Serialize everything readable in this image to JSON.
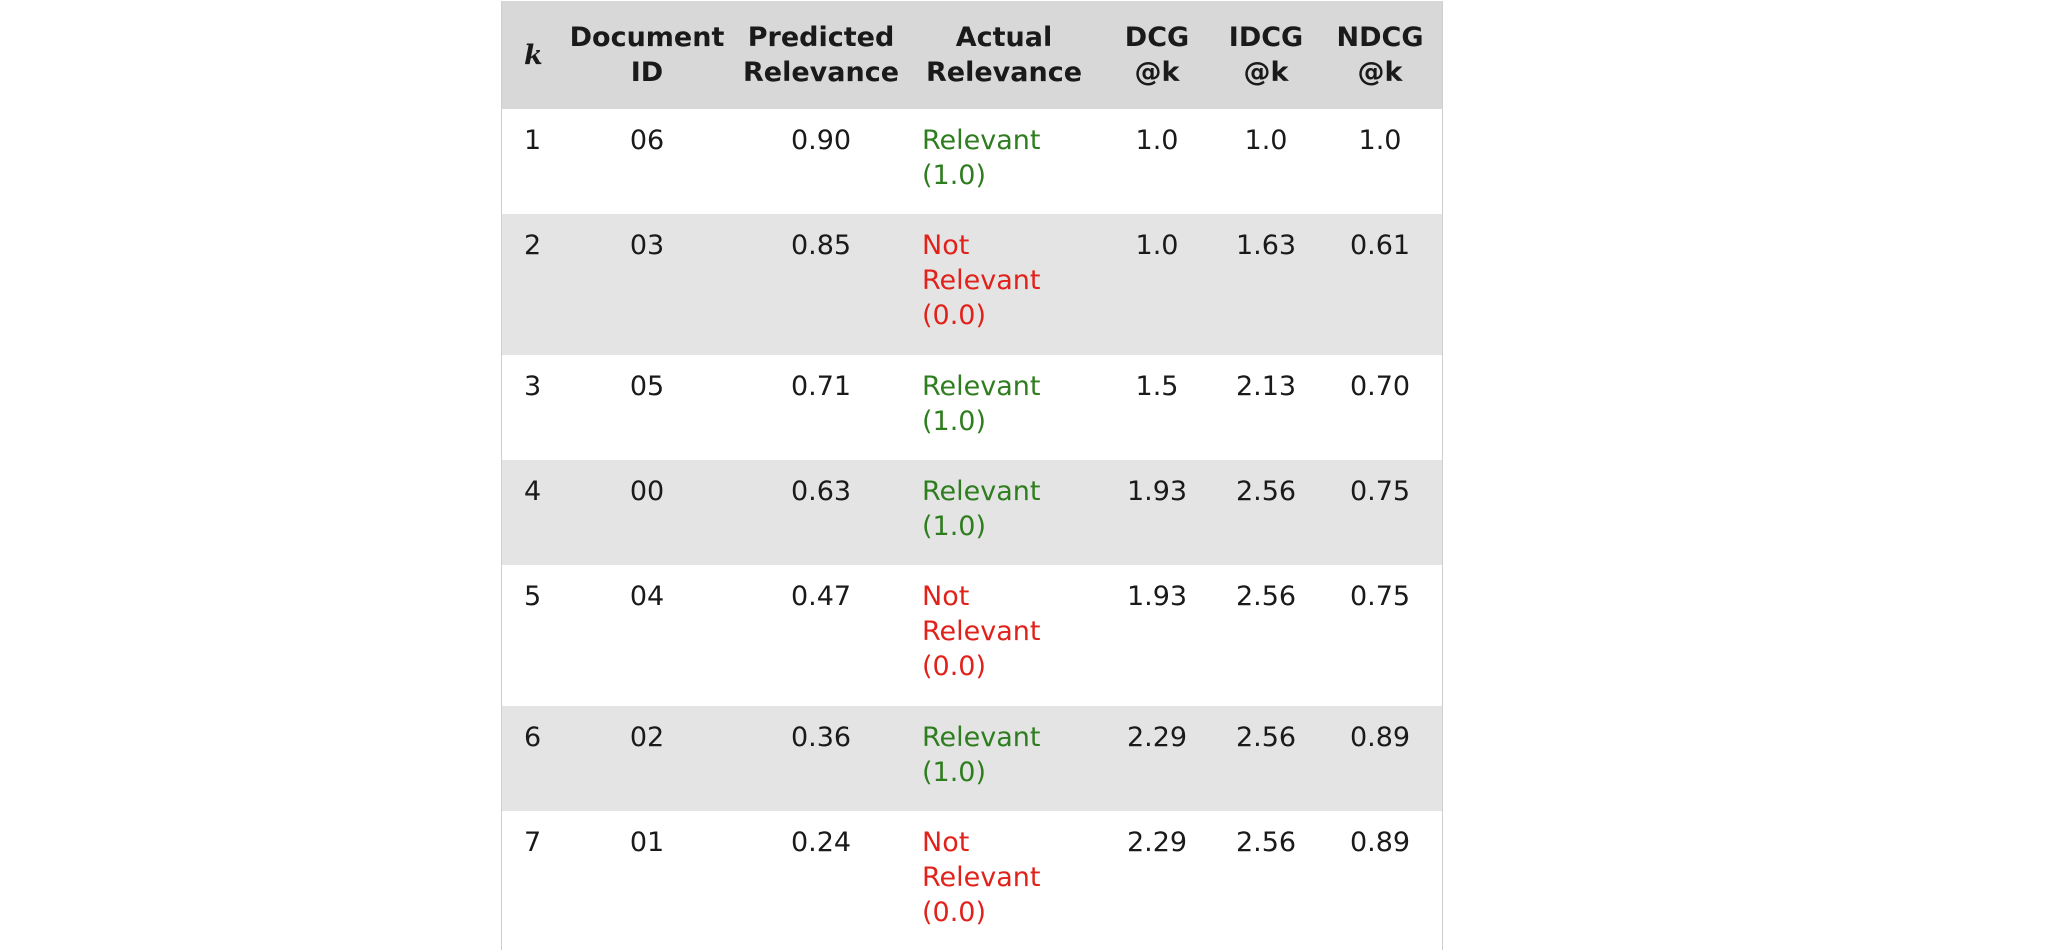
{
  "colors": {
    "relevant": "#2e7d1f",
    "not_relevant": "#e0221b",
    "header_bg": "#d8d8d8",
    "stripe_bg": "#e4e4e4"
  },
  "headers": {
    "k": "k",
    "document_id": "Document ID",
    "predicted_relevance": "Predicted Relevance",
    "actual_relevance": "Actual Relevance",
    "dcg": "DCG @k",
    "idcg": "IDCG @k",
    "ndcg": "NDCG @k"
  },
  "rows": [
    {
      "k": "1",
      "doc": "06",
      "pred": "0.90",
      "actual": "Relevant (1.0)",
      "status": "relevant",
      "dcg": "1.0",
      "idcg": "1.0",
      "ndcg": "1.0"
    },
    {
      "k": "2",
      "doc": "03",
      "pred": "0.85",
      "actual": "Not Relevant (0.0)",
      "status": "not-relevant",
      "dcg": "1.0",
      "idcg": "1.63",
      "ndcg": "0.61"
    },
    {
      "k": "3",
      "doc": "05",
      "pred": "0.71",
      "actual": "Relevant (1.0)",
      "status": "relevant",
      "dcg": "1.5",
      "idcg": "2.13",
      "ndcg": "0.70"
    },
    {
      "k": "4",
      "doc": "00",
      "pred": "0.63",
      "actual": "Relevant (1.0)",
      "status": "relevant",
      "dcg": "1.93",
      "idcg": "2.56",
      "ndcg": "0.75"
    },
    {
      "k": "5",
      "doc": "04",
      "pred": "0.47",
      "actual": "Not Relevant (0.0)",
      "status": "not-relevant",
      "dcg": "1.93",
      "idcg": "2.56",
      "ndcg": "0.75"
    },
    {
      "k": "6",
      "doc": "02",
      "pred": "0.36",
      "actual": "Relevant (1.0)",
      "status": "relevant",
      "dcg": "2.29",
      "idcg": "2.56",
      "ndcg": "0.89"
    },
    {
      "k": "7",
      "doc": "01",
      "pred": "0.24",
      "actual": "Not Relevant (0.0)",
      "status": "not-relevant",
      "dcg": "2.29",
      "idcg": "2.56",
      "ndcg": "0.89"
    }
  ]
}
